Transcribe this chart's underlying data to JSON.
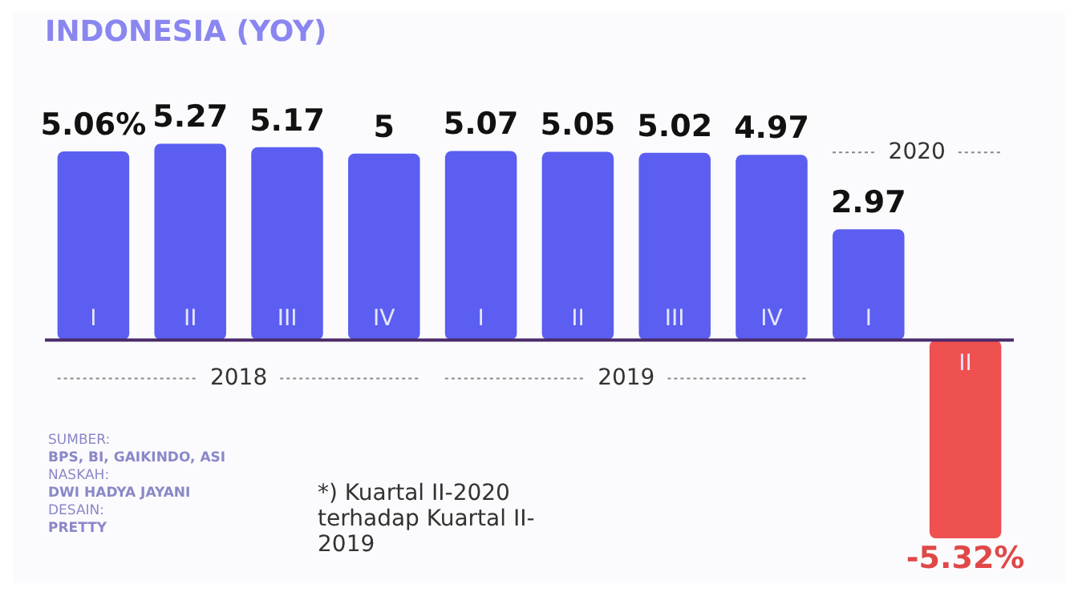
{
  "chart_data": {
    "type": "bar",
    "title": "INDONESIA (YOY)",
    "categories": [
      "I",
      "II",
      "III",
      "IV",
      "I",
      "II",
      "III",
      "IV",
      "I",
      "II"
    ],
    "values": [
      5.06,
      5.27,
      5.17,
      5,
      5.07,
      5.05,
      5.02,
      4.97,
      2.97,
      -5.32
    ],
    "colors": [
      "#5b5ef0",
      "#5b5ef0",
      "#5b5ef0",
      "#5b5ef0",
      "#5b5ef0",
      "#5b5ef0",
      "#5b5ef0",
      "#5b5ef0",
      "#5b5ef0",
      "#ef5050"
    ],
    "value_labels": [
      "5.06%",
      "5.27",
      "5.17",
      "5",
      "5.07",
      "5.05",
      "5.02",
      "4.97",
      "2.97",
      "-5.32%"
    ],
    "legend": false,
    "annotations": [
      "2018",
      "2019",
      "2020",
      "SUMBER:\nBPS, BI, GAIKINDO, ASI",
      "NASKAH:\nDWI HADYA JAYANI",
      "DESAIN:\nPRETTY",
      "*) Kuartal II-2020 terhadap Kuartal II-2019"
    ]
  }
}
